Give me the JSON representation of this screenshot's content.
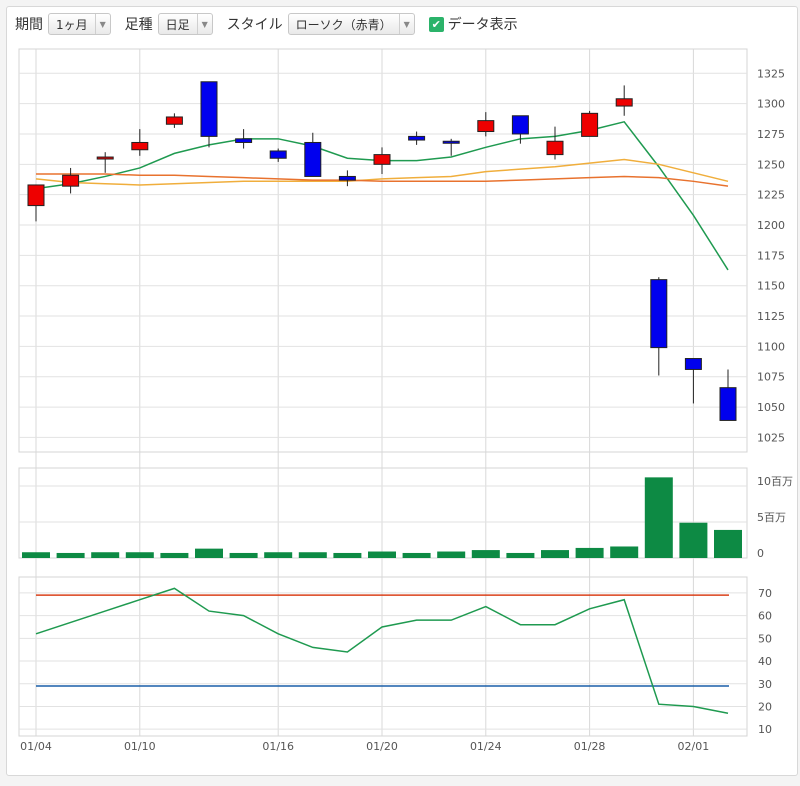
{
  "toolbar": {
    "period_label": "期間",
    "period_value": "1ヶ月",
    "foot_label": "足種",
    "foot_value": "日足",
    "style_label": "スタイル",
    "style_value": "ローソク（赤青）",
    "data_label": "データ表示",
    "data_checked": true,
    "check_icon": "checkmark-icon",
    "dropdown_icon": "chevron-down-icon"
  },
  "chart_data": {
    "type": "candlestick",
    "x_labels": [
      {
        "index": 0,
        "label": "01/04"
      },
      {
        "index": 3,
        "label": "01/10"
      },
      {
        "index": 7,
        "label": "01/16"
      },
      {
        "index": 10,
        "label": "01/20"
      },
      {
        "index": 13,
        "label": "01/24"
      },
      {
        "index": 16,
        "label": "01/28"
      },
      {
        "index": 19,
        "label": "02/01"
      }
    ],
    "up_color": "#ee0000",
    "down_color": "#0000ee",
    "candles": [
      {
        "o": 1216,
        "h": 1233,
        "l": 1203,
        "c": 1233
      },
      {
        "o": 1232,
        "h": 1247,
        "l": 1226,
        "c": 1241
      },
      {
        "o": 1255,
        "h": 1260,
        "l": 1243,
        "c": 1256
      },
      {
        "o": 1262,
        "h": 1279,
        "l": 1257,
        "c": 1268
      },
      {
        "o": 1283,
        "h": 1292,
        "l": 1280,
        "c": 1289
      },
      {
        "o": 1318,
        "h": 1318,
        "l": 1264,
        "c": 1273
      },
      {
        "o": 1271,
        "h": 1279,
        "l": 1263,
        "c": 1268
      },
      {
        "o": 1261,
        "h": 1263,
        "l": 1252,
        "c": 1255
      },
      {
        "o": 1268,
        "h": 1276,
        "l": 1240,
        "c": 1240
      },
      {
        "o": 1240,
        "h": 1245,
        "l": 1232,
        "c": 1237
      },
      {
        "o": 1250,
        "h": 1264,
        "l": 1242,
        "c": 1258
      },
      {
        "o": 1273,
        "h": 1277,
        "l": 1266,
        "c": 1270
      },
      {
        "o": 1269,
        "h": 1271,
        "l": 1257,
        "c": 1268
      },
      {
        "o": 1277,
        "h": 1293,
        "l": 1273,
        "c": 1286
      },
      {
        "o": 1290,
        "h": 1290,
        "l": 1267,
        "c": 1275
      },
      {
        "o": 1258,
        "h": 1281,
        "l": 1254,
        "c": 1269
      },
      {
        "o": 1273,
        "h": 1294,
        "l": 1273,
        "c": 1292
      },
      {
        "o": 1298,
        "h": 1315,
        "l": 1290,
        "c": 1304
      },
      {
        "o": 1155,
        "h": 1157,
        "l": 1076,
        "c": 1099
      },
      {
        "o": 1090,
        "h": 1090,
        "l": 1053,
        "c": 1081
      },
      {
        "o": 1066,
        "h": 1081,
        "l": 1039,
        "c": 1039
      }
    ],
    "ma_lines": [
      {
        "color": "#1f9a50",
        "values": [
          1230,
          1234,
          1240,
          1247,
          1259,
          1266,
          1271,
          1271,
          1265,
          1255,
          1253,
          1253,
          1256,
          1264,
          1271,
          1273,
          1278,
          1285,
          1248,
          1208,
          1163
        ]
      },
      {
        "color": "#f0ae3c",
        "values": [
          1238,
          1235,
          1234,
          1233,
          1234,
          1235,
          1236,
          1236,
          1236,
          1236,
          1238,
          1239,
          1240,
          1244,
          1246,
          1248,
          1251,
          1254,
          1250,
          1243,
          1236
        ]
      },
      {
        "color": "#e8722e",
        "values": [
          1242,
          1242,
          1242,
          1241,
          1241,
          1240,
          1239,
          1238,
          1237,
          1237,
          1236,
          1236,
          1236,
          1236,
          1237,
          1238,
          1239,
          1240,
          1239,
          1236,
          1232
        ]
      }
    ],
    "price_ticks": [
      1025,
      1050,
      1075,
      1100,
      1125,
      1150,
      1175,
      1200,
      1225,
      1250,
      1275,
      1300,
      1325
    ],
    "price_ylim": [
      1013,
      1345
    ],
    "volume": {
      "color": "#0d8a44",
      "values": [
        0.8,
        0.7,
        0.8,
        0.8,
        0.7,
        1.3,
        0.7,
        0.8,
        0.8,
        0.7,
        0.9,
        0.7,
        0.9,
        1.1,
        0.7,
        1.1,
        1.4,
        1.6,
        11.2,
        4.9,
        3.9
      ],
      "ticks": [
        {
          "v": 0,
          "label": "0"
        },
        {
          "v": 5,
          "label": "5百万"
        },
        {
          "v": 10,
          "label": "10百万"
        }
      ],
      "ylim": [
        0,
        12.5
      ]
    },
    "oscillator": {
      "line_color": "#1f9a50",
      "values": [
        52,
        57,
        62,
        67,
        72,
        62,
        60,
        52,
        46,
        44,
        55,
        58,
        58,
        64,
        56,
        56,
        63,
        67,
        21,
        20,
        17
      ],
      "upper": {
        "v": 69,
        "color": "#d9401a"
      },
      "lower": {
        "v": 29,
        "color": "#1a5fa8"
      },
      "ticks": [
        10,
        20,
        30,
        40,
        50,
        60,
        70
      ],
      "ylim": [
        7,
        77
      ]
    }
  }
}
